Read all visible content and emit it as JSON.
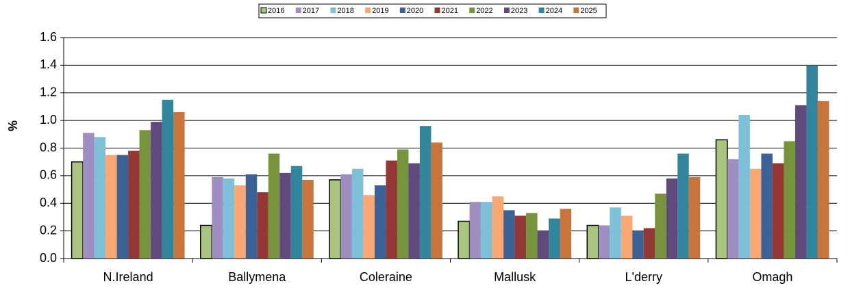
{
  "chart_data": {
    "type": "bar",
    "y_label": "%",
    "categories": [
      "N.Ireland",
      "Ballymena",
      "Coleraine",
      "Mallusk",
      "L'derry",
      "Omagh"
    ],
    "series": [
      {
        "name": "2016",
        "color": "#a9c47f",
        "edgecolor": "#000000",
        "values": [
          0.7,
          0.24,
          0.57,
          0.27,
          0.24,
          0.86
        ]
      },
      {
        "name": "2017",
        "color": "#9e8fc0",
        "values": [
          0.91,
          0.59,
          0.61,
          0.41,
          0.24,
          0.72
        ]
      },
      {
        "name": "2018",
        "color": "#7fc0d9",
        "values": [
          0.88,
          0.58,
          0.65,
          0.41,
          0.37,
          1.04
        ]
      },
      {
        "name": "2019",
        "color": "#f9a874",
        "values": [
          0.75,
          0.53,
          0.46,
          0.45,
          0.31,
          0.65
        ]
      },
      {
        "name": "2020",
        "color": "#3b6296",
        "values": [
          0.75,
          0.61,
          0.53,
          0.35,
          0.2,
          0.76
        ]
      },
      {
        "name": "2021",
        "color": "#953735",
        "values": [
          0.78,
          0.48,
          0.71,
          0.31,
          0.22,
          0.69
        ]
      },
      {
        "name": "2022",
        "color": "#77933c",
        "values": [
          0.93,
          0.76,
          0.79,
          0.33,
          0.47,
          0.85
        ]
      },
      {
        "name": "2023",
        "color": "#604a7b",
        "values": [
          0.99,
          0.62,
          0.69,
          0.2,
          0.58,
          1.11
        ]
      },
      {
        "name": "2024",
        "color": "#31859c",
        "values": [
          1.15,
          0.67,
          0.96,
          0.29,
          0.76,
          1.4
        ]
      },
      {
        "name": "2025",
        "color": "#c8743a",
        "values": [
          1.06,
          0.57,
          0.84,
          0.36,
          0.59,
          1.14
        ]
      }
    ],
    "ylim": [
      0,
      1.6
    ],
    "yticks": [
      {
        "value": 0,
        "label": "0.0"
      },
      0.2,
      0.4,
      0.6,
      0.8,
      {
        "value": 1,
        "label": "1.0"
      },
      1.2,
      1.4,
      1.6
    ],
    "grid": true,
    "legend": "top"
  }
}
